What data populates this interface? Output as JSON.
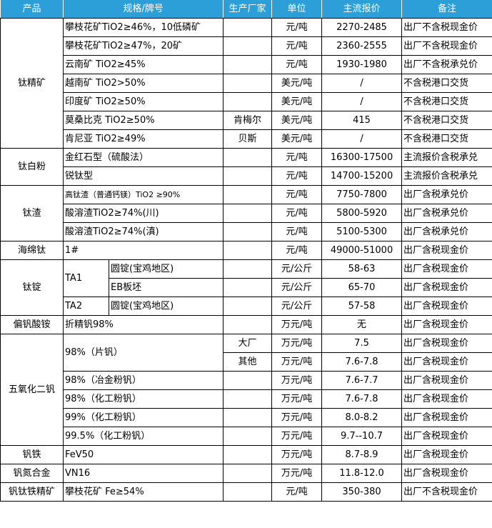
{
  "header": [
    "产品",
    "规格/牌号",
    "生产厂家",
    "单位",
    "主流报价",
    "备注"
  ],
  "rows": [
    [
      {
        "t": "钛精矿",
        "rs": 7
      },
      {
        "t": "攀枝花矿TiO2≥46%，10低磷矿",
        "cs": 2,
        "l": 1
      },
      {
        "t": ""
      },
      {
        "t": "元/吨"
      },
      {
        "t": "2270-2485"
      },
      {
        "t": "出厂不含税现金价",
        "l": 1
      }
    ],
    [
      {
        "t": "攀枝花矿TiO2≥47%，20矿",
        "cs": 2,
        "l": 1
      },
      {
        "t": ""
      },
      {
        "t": "元/吨"
      },
      {
        "t": "2360-2555"
      },
      {
        "t": "出厂不含税现金价",
        "l": 1
      }
    ],
    [
      {
        "t": "云南矿 TiO2≥45%",
        "cs": 2,
        "l": 1
      },
      {
        "t": ""
      },
      {
        "t": "元/吨"
      },
      {
        "t": "1930-1980"
      },
      {
        "t": "出厂不含税承兑价",
        "l": 1
      }
    ],
    [
      {
        "t": "越南矿 TiO2>50%",
        "cs": 2,
        "l": 1
      },
      {
        "t": ""
      },
      {
        "t": "美元/吨"
      },
      {
        "t": "/"
      },
      {
        "t": "不含税港口交货",
        "l": 1
      }
    ],
    [
      {
        "t": "印度矿 TiO2≥50%",
        "cs": 2,
        "l": 1
      },
      {
        "t": ""
      },
      {
        "t": "美元/吨"
      },
      {
        "t": "/"
      },
      {
        "t": "不含税港口交货",
        "l": 1
      }
    ],
    [
      {
        "t": "莫桑比克 TiO2≥50%",
        "cs": 2,
        "l": 1
      },
      {
        "t": "肯梅尔"
      },
      {
        "t": "美元/吨"
      },
      {
        "t": "415"
      },
      {
        "t": "不含税港口交货",
        "l": 1
      }
    ],
    [
      {
        "t": "肯尼亚 TiO2≥49%",
        "cs": 2,
        "l": 1
      },
      {
        "t": "贝斯"
      },
      {
        "t": "美元/吨"
      },
      {
        "t": "/"
      },
      {
        "t": "不含税港口交货",
        "l": 1
      }
    ],
    [
      {
        "t": "钛白粉",
        "rs": 2
      },
      {
        "t": "金红石型（硫酸法）",
        "cs": 2,
        "l": 1
      },
      {
        "t": ""
      },
      {
        "t": "元/吨"
      },
      {
        "t": "16300-17500"
      },
      {
        "t": "主流报价含税承兑",
        "l": 1
      }
    ],
    [
      {
        "t": "锐钛型",
        "cs": 2,
        "l": 1
      },
      {
        "t": ""
      },
      {
        "t": "元/吨"
      },
      {
        "t": "14700-15200"
      },
      {
        "t": "主流报价含税承兑",
        "l": 1
      }
    ],
    [
      {
        "t": "钛渣",
        "rs": 3
      },
      {
        "t": "高钛渣（普通钙镁）TiO2 ≥90%",
        "cs": 2,
        "l": 1,
        "s": 1
      },
      {
        "t": ""
      },
      {
        "t": "元/吨"
      },
      {
        "t": "7750-7800"
      },
      {
        "t": "出厂含税承兑价",
        "l": 1
      }
    ],
    [
      {
        "t": "酸溶渣TiO2≥74%(川)",
        "cs": 2,
        "l": 1
      },
      {
        "t": ""
      },
      {
        "t": "元/吨"
      },
      {
        "t": "5800-5920"
      },
      {
        "t": "出厂含税承兑价",
        "l": 1
      }
    ],
    [
      {
        "t": "酸溶渣TiO2≥74%(滇)",
        "cs": 2,
        "l": 1
      },
      {
        "t": ""
      },
      {
        "t": "元/吨"
      },
      {
        "t": "5100-5300"
      },
      {
        "t": "出厂含税承兑价",
        "l": 1
      }
    ],
    [
      {
        "t": "海绵钛"
      },
      {
        "t": "1#",
        "cs": 2,
        "l": 1
      },
      {
        "t": ""
      },
      {
        "t": "元/吨"
      },
      {
        "t": "49000-51000"
      },
      {
        "t": "出厂含税现金价",
        "l": 1
      }
    ],
    [
      {
        "t": "钛锭",
        "rs": 3
      },
      {
        "t": "TA1",
        "rs": 2,
        "l": 1
      },
      {
        "t": "圆锭(宝鸡地区)",
        "l": 1
      },
      {
        "t": ""
      },
      {
        "t": "元/公斤"
      },
      {
        "t": "58-63"
      },
      {
        "t": "出厂含税现金价",
        "l": 1
      }
    ],
    [
      {
        "t": "EB板坯",
        "l": 1
      },
      {
        "t": ""
      },
      {
        "t": "元/公斤"
      },
      {
        "t": "65-70"
      },
      {
        "t": "出厂含税现金价",
        "l": 1
      }
    ],
    [
      {
        "t": "TA2",
        "l": 1
      },
      {
        "t": "圆锭(宝鸡地区)",
        "l": 1
      },
      {
        "t": ""
      },
      {
        "t": "元/公斤"
      },
      {
        "t": "57-58"
      },
      {
        "t": "出厂含税现金价",
        "l": 1
      }
    ],
    [
      {
        "t": "偏钒酸铵"
      },
      {
        "t": "折精钒98%",
        "cs": 2,
        "l": 1
      },
      {
        "t": ""
      },
      {
        "t": "万元/吨"
      },
      {
        "t": "无"
      },
      {
        "t": "出厂含税现金价",
        "l": 1
      }
    ],
    [
      {
        "t": "五氧化二钒",
        "rs": 6
      },
      {
        "t": "98%（片钒）",
        "cs": 2,
        "rs": 2,
        "l": 1
      },
      {
        "t": "大厂"
      },
      {
        "t": "万元/吨"
      },
      {
        "t": "7.5"
      },
      {
        "t": "出厂含税现金价",
        "l": 1
      }
    ],
    [
      {
        "t": "其他"
      },
      {
        "t": "万元/吨"
      },
      {
        "t": "7.6-7.8"
      },
      {
        "t": "出厂含税现金价",
        "l": 1
      }
    ],
    [
      {
        "t": "98%（冶金粉钒）",
        "cs": 2,
        "l": 1
      },
      {
        "t": ""
      },
      {
        "t": "万元/吨"
      },
      {
        "t": "7.6-7.7"
      },
      {
        "t": "出厂含税现金价",
        "l": 1
      }
    ],
    [
      {
        "t": "98%（化工粉钒）",
        "cs": 2,
        "l": 1
      },
      {
        "t": ""
      },
      {
        "t": "万元/吨"
      },
      {
        "t": "7.6-7.8"
      },
      {
        "t": "出厂含税现金价",
        "l": 1
      }
    ],
    [
      {
        "t": "99%（化工粉钒）",
        "cs": 2,
        "l": 1
      },
      {
        "t": ""
      },
      {
        "t": "万元/吨"
      },
      {
        "t": "8.0-8.2"
      },
      {
        "t": "出厂含税现金价",
        "l": 1
      }
    ],
    [
      {
        "t": "99.5%（化工粉钒）",
        "cs": 2,
        "l": 1
      },
      {
        "t": ""
      },
      {
        "t": "万元/吨"
      },
      {
        "t": "9.7--10.7"
      },
      {
        "t": "出厂含税现金价",
        "l": 1
      }
    ],
    [
      {
        "t": "钒铁"
      },
      {
        "t": "FeV50",
        "cs": 2,
        "l": 1
      },
      {
        "t": ""
      },
      {
        "t": "万元/吨"
      },
      {
        "t": "8.7-8.9"
      },
      {
        "t": "出厂含税现金价",
        "l": 1
      }
    ],
    [
      {
        "t": "钒氮合金"
      },
      {
        "t": "VN16",
        "cs": 2,
        "l": 1
      },
      {
        "t": ""
      },
      {
        "t": "万元/吨"
      },
      {
        "t": "11.8-12.0"
      },
      {
        "t": "出厂含税现金价",
        "l": 1
      }
    ],
    [
      {
        "t": "钒钛铁精矿"
      },
      {
        "t": "攀枝花矿 Fe≥54%",
        "cs": 2,
        "l": 1
      },
      {
        "t": ""
      },
      {
        "t": "元/吨"
      },
      {
        "t": "350-380"
      },
      {
        "t": "出厂不含税现金价",
        "l": 1
      }
    ]
  ],
  "colors": {
    "header_bg": "#2d9fd8",
    "header_text": "#ffffff"
  }
}
